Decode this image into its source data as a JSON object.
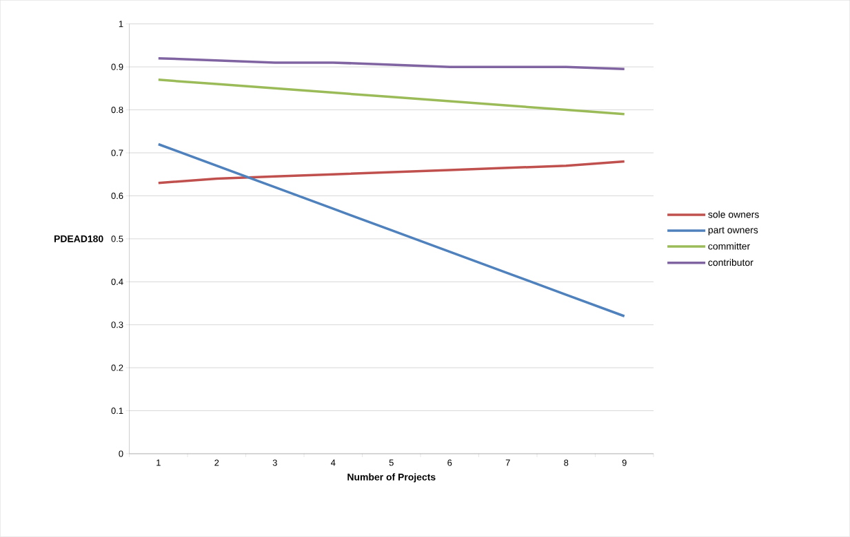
{
  "chart_data": {
    "type": "line",
    "xlabel": "Number of Projects",
    "ylabel": "PDEAD180",
    "categories": [
      "1",
      "2",
      "3",
      "4",
      "5",
      "6",
      "7",
      "8",
      "9"
    ],
    "series": [
      {
        "name": "sole owners",
        "color": "#c0504d",
        "values": [
          0.63,
          0.64,
          0.645,
          0.65,
          0.655,
          0.66,
          0.665,
          0.67,
          0.68
        ]
      },
      {
        "name": "part owners",
        "color": "#4f81bd",
        "values": [
          0.72,
          0.67,
          0.62,
          0.57,
          0.52,
          0.47,
          0.42,
          0.37,
          0.32
        ]
      },
      {
        "name": "committer",
        "color": "#9bbb59",
        "values": [
          0.87,
          0.86,
          0.85,
          0.84,
          0.83,
          0.82,
          0.81,
          0.8,
          0.79
        ]
      },
      {
        "name": "contributor",
        "color": "#8064a2",
        "values": [
          0.92,
          0.915,
          0.91,
          0.91,
          0.905,
          0.9,
          0.9,
          0.9,
          0.895
        ]
      }
    ],
    "ylim": [
      0,
      1
    ],
    "yticks": [
      0,
      0.1,
      0.2,
      0.3,
      0.4,
      0.5,
      0.6,
      0.7,
      0.8,
      0.9,
      1
    ],
    "grid": "y",
    "legend": "right",
    "line_style": "solid"
  }
}
